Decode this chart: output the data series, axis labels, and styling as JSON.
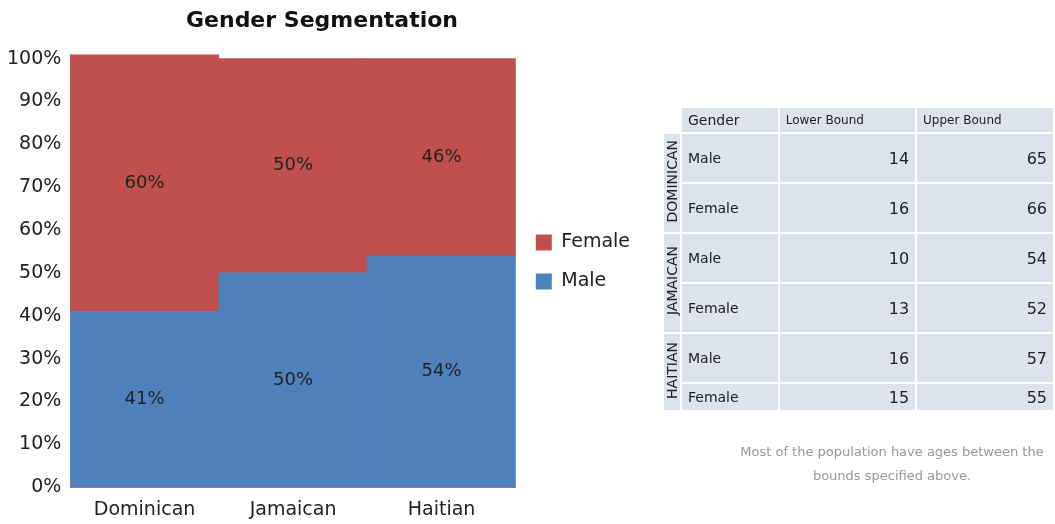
{
  "chart_data": [
    {
      "type": "bar",
      "title": "Gender Segmentation",
      "stacked": true,
      "categories": [
        "Dominican",
        "Jamaican",
        "Haitian"
      ],
      "series": [
        {
          "name": "Male",
          "color": "#4f81bd",
          "values": [
            41,
            50,
            54
          ],
          "value_labels": [
            "41%",
            "50%",
            "54%"
          ]
        },
        {
          "name": "Female",
          "color": "#c0504d",
          "values": [
            60,
            50,
            46
          ],
          "value_labels": [
            "60%",
            "50%",
            "46%"
          ]
        }
      ],
      "ylim": [
        0,
        101
      ],
      "yticks": [
        {
          "value": 0,
          "label": "0%"
        },
        {
          "value": 10,
          "label": "10%"
        },
        {
          "value": 20,
          "label": "20%"
        },
        {
          "value": 30,
          "label": "30%"
        },
        {
          "value": 40,
          "label": "40%"
        },
        {
          "value": 50,
          "label": "50%"
        },
        {
          "value": 60,
          "label": "60%"
        },
        {
          "value": 70,
          "label": "70%"
        },
        {
          "value": 80,
          "label": "80%"
        },
        {
          "value": 90,
          "label": "90%"
        },
        {
          "value": 100,
          "label": "100%"
        }
      ],
      "grid": false,
      "legend": "right"
    },
    {
      "type": "other",
      "categories": [
        "Lower Bound",
        "Upper Bound"
      ],
      "ylabel": "Gender",
      "y_categories": [
        "Male",
        "Female",
        "Male",
        "Female",
        "Male",
        "Female"
      ],
      "y2_categories": [
        "DOMINICAN",
        null,
        "JAMAICAN",
        null,
        "HAITIAN",
        null
      ],
      "cell_labels": [
        [
          "14",
          "65"
        ],
        [
          "16",
          "66"
        ],
        [
          "10",
          "54"
        ],
        [
          "13",
          "52"
        ],
        [
          "16",
          "57"
        ],
        [
          "15",
          "55"
        ]
      ],
      "annotations": [
        "Most of the population have ages between the bounds specified above."
      ]
    }
  ]
}
